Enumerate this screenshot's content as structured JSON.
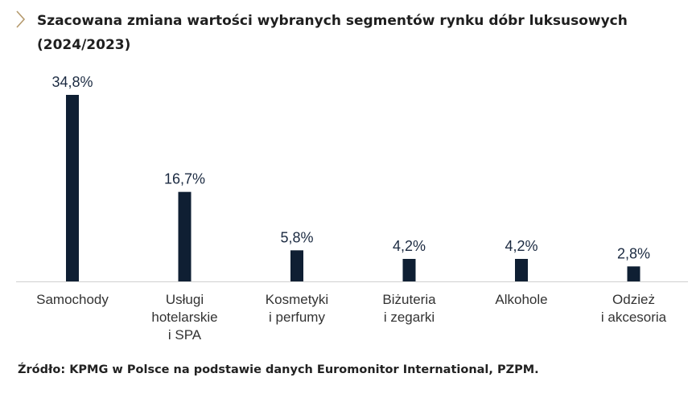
{
  "icons": {
    "title_marker": "chevron-right-icon"
  },
  "colors": {
    "bar": "#0f1f33",
    "chevron": "#b59a6d",
    "axis": "#d0d0d0"
  },
  "chart_data": {
    "type": "bar",
    "title": "Szacowana zmiana wartości wybranych segmentów rynku dóbr luksusowych (2024/2023)",
    "xlabel": "",
    "ylabel": "",
    "ylim": [
      0,
      36
    ],
    "grid": false,
    "legend": "none",
    "categories": [
      [
        "Samochody"
      ],
      [
        "Usługi",
        "hotelarskie",
        "i SPA"
      ],
      [
        "Kosmetyki",
        "i perfumy"
      ],
      [
        "Biżuteria",
        "i zegarki"
      ],
      [
        "Alkohole"
      ],
      [
        "Odzież",
        "i akcesoria"
      ]
    ],
    "values": [
      34.8,
      16.7,
      5.8,
      4.2,
      4.2,
      2.8
    ],
    "value_labels": [
      "34,8%",
      "16,7%",
      "5,8%",
      "4,2%",
      "4,2%",
      "2,8%"
    ]
  },
  "source": "Źródło: KPMG w Polsce na podstawie danych Euromonitor International, PZPM."
}
